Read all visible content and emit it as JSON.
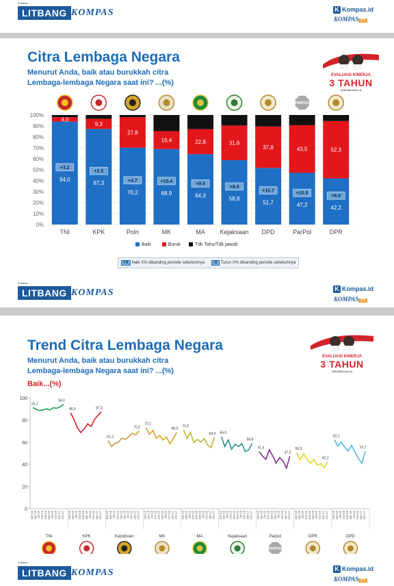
{
  "header": {
    "source_label": "Sumber:",
    "litbang": "LITBANG",
    "kompas": "KOMPAS",
    "kompasid": "Kompas.id",
    "kompastv_main": "KOMPAS",
    "kompastv_tv": "TV"
  },
  "colors": {
    "baik": "#1f6fc4",
    "buruk": "#e3161b",
    "tdk_tahu": "#111111",
    "title": "#1c6cb5",
    "brand": "#1c5a9b"
  },
  "icons": [
    "tni-emblem-icon",
    "kpk-emblem-icon",
    "polri-emblem-icon",
    "mk-emblem-icon",
    "ma-emblem-icon",
    "kejaksaan-emblem-icon",
    "dpd-emblem-icon",
    "parpol-emblem-icon",
    "dpr-emblem-icon"
  ],
  "parpol_label": "PARPOL",
  "badge": {
    "evaluasi": "EVALUASI KINERJA",
    "tahun": "3 TAHUN",
    "jokowi": "JOKOWI-KALLA"
  },
  "chart1": {
    "title": "Citra Lembaga Negara",
    "subtitle1": "Menurut Anda, baik atau burukkah citra",
    "subtitle2": "Lembaga-lembaga Negara saat ini? ...(%)"
  },
  "chart2": {
    "title": "Trend Citra Lembaga Negara",
    "subtitle1": "Menurut Anda, baik atau burukkah citra",
    "subtitle2": "Lembaga-lembaga Negara saat ini? ...(%)",
    "baik": "Baik...(%)"
  },
  "chart_data": [
    {
      "type": "bar",
      "stacked": true,
      "categories": [
        "TNI",
        "KPK",
        "Polri",
        "MK",
        "MA",
        "Kejaksaan",
        "DPD",
        "ParPol",
        "DPR"
      ],
      "series": [
        {
          "name": "Baik",
          "color": "#1f6fc4",
          "values": [
            94.0,
            87.3,
            70.2,
            68.9,
            64.3,
            58.8,
            51.7,
            47.2,
            42.2
          ],
          "labels": [
            "94,0",
            "87,3",
            "70,2",
            "68,9",
            "64,3",
            "58,8",
            "51,7",
            "47,2",
            "42,2"
          ]
        },
        {
          "name": "Buruk",
          "color": "#e3161b",
          "values": [
            4.0,
            9.3,
            27.8,
            16.4,
            22.8,
            31.6,
            37.8,
            43.5,
            52.3
          ],
          "labels": [
            "4,0",
            "9,3",
            "27,8",
            "16,4",
            "22,8",
            "31,6",
            "37,8",
            "43,5",
            "52,3"
          ]
        },
        {
          "name": "Tdk Tahu/Tdk jawab",
          "color": "#111111",
          "values": [
            2.0,
            3.4,
            2.0,
            14.7,
            12.9,
            9.6,
            10.5,
            9.3,
            5.5
          ]
        }
      ],
      "changes": [
        "+3.2",
        "+2.5",
        "+4.7",
        "+10.4",
        "+9.5",
        "+8.0",
        "+10.7",
        "+10.5",
        "+6.0"
      ],
      "yticks": [
        "0%",
        "10%",
        "20%",
        "30%",
        "40%",
        "50%",
        "60%",
        "70%",
        "80%",
        "90%",
        "100%"
      ],
      "ylim": [
        0,
        100
      ],
      "legend_note_up_pill": "+X",
      "legend_note_up": "Naik X% dibanding periode sebelumnya",
      "legend_note_down_pill": "-X",
      "legend_note_down": "Turun X% dibanding periode sebelumnya"
    },
    {
      "type": "line",
      "ylim": [
        0,
        100
      ],
      "yticks": [
        0,
        20,
        40,
        60,
        80,
        100
      ],
      "periods": [
        "Jan-15",
        "Apr-15",
        "Jul-15",
        "Oct-15",
        "Jan-16",
        "Apr-16",
        "Jul-16",
        "Oct-16",
        "Apr-17",
        "Oct-17"
      ],
      "groups": [
        {
          "name": "TNI",
          "color": "#1a9c4b",
          "values": [
            91.2,
            89.5,
            88.5,
            89.0,
            90.0,
            89.0,
            91.0,
            90.5,
            92.0,
            94.0
          ],
          "start_label": "91,2",
          "end_label": "94,0"
        },
        {
          "name": "KPK",
          "color": "#d31f26",
          "values": [
            86.5,
            80.5,
            73.0,
            68.5,
            72.0,
            76.5,
            74.0,
            80.5,
            84.0,
            87.3
          ],
          "start_label": "86,5",
          "end_label": "87,3"
        },
        {
          "name": "Kepolisian",
          "color": "#c89b3a",
          "values": [
            61.3,
            56.0,
            59.0,
            60.0,
            63.5,
            62.5,
            65.0,
            68.0,
            66.5,
            70.2
          ],
          "start_label": "61,3",
          "end_label": "70,2"
        },
        {
          "name": "MK",
          "color": "#d9a021",
          "values": [
            73.1,
            67.0,
            70.5,
            63.5,
            66.0,
            62.0,
            64.5,
            58.5,
            63.0,
            68.9
          ],
          "start_label": "73,1",
          "end_label": "68,9"
        },
        {
          "name": "MA",
          "color": "#b7b52c",
          "values": [
            71.0,
            63.5,
            68.5,
            59.5,
            62.5,
            60.0,
            63.0,
            57.5,
            55.0,
            64.3
          ],
          "start_label": "71,0",
          "end_label": "64,3"
        },
        {
          "name": "Kejaksaan",
          "color": "#2a8c8f",
          "values": [
            65.0,
            56.0,
            62.0,
            53.5,
            58.0,
            56.0,
            58.5,
            51.5,
            53.0,
            58.8
          ],
          "start_label": "65,0",
          "end_label": "58,8"
        },
        {
          "name": "Parpol",
          "color": "#7a2f86",
          "values": [
            51.4,
            47.5,
            44.5,
            53.0,
            47.5,
            41.0,
            46.0,
            43.0,
            36.5,
            47.2
          ],
          "start_label": "51,4",
          "end_label": "47,2"
        },
        {
          "name": "DPR",
          "color": "#e2d71f",
          "values": [
            50.5,
            44.0,
            49.5,
            44.5,
            41.0,
            44.5,
            39.5,
            40.5,
            37.0,
            42.2
          ],
          "start_label": "50,5",
          "end_label": "42,2"
        },
        {
          "name": "DPD",
          "color": "#4fb3e8",
          "values": [
            62.1,
            56.5,
            60.0,
            55.5,
            52.0,
            57.0,
            51.0,
            45.0,
            41.0,
            51.7
          ],
          "start_label": "62,1",
          "end_label": "51,7"
        }
      ]
    }
  ]
}
